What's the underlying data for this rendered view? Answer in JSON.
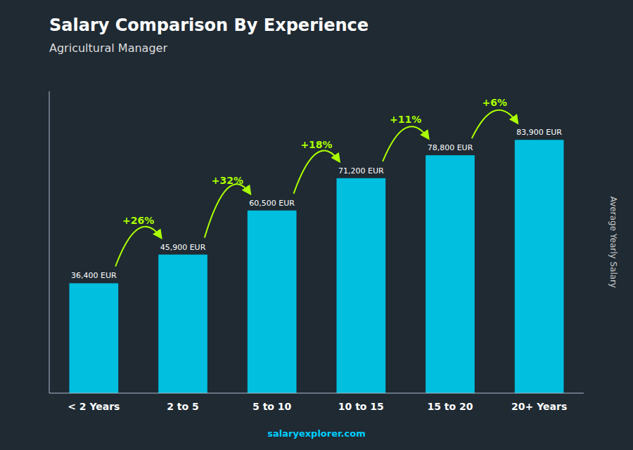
{
  "chart_data": {
    "type": "bar",
    "title": "Salary Comparison By Experience",
    "subtitle": "Agricultural Manager",
    "categories": [
      "< 2 Years",
      "2 to 5",
      "5 to 10",
      "10 to 15",
      "15 to 20",
      "20+ Years"
    ],
    "values": [
      36400,
      45900,
      60500,
      71200,
      78800,
      83900
    ],
    "value_labels": [
      "36,400 EUR",
      "45,900 EUR",
      "60,500 EUR",
      "71,200 EUR",
      "78,800 EUR",
      "83,900 EUR"
    ],
    "data_labels": true,
    "color": "#00BFDF",
    "annotations": [
      {
        "text": "+26%",
        "color": "#AAFF00"
      },
      {
        "text": "+32%",
        "color": "#AAFF00"
      },
      {
        "text": "+18%",
        "color": "#AAFF00"
      },
      {
        "text": "+11%",
        "color": "#AAFF00"
      },
      {
        "text": "+6%",
        "color": "#AAFF00"
      }
    ],
    "y_label": "Average Yearly Salary",
    "footer": "salaryexplorer.com",
    "ylim": [
      0,
      100000
    ],
    "yticks": [],
    "tick_labels": "x",
    "grid": false
  }
}
